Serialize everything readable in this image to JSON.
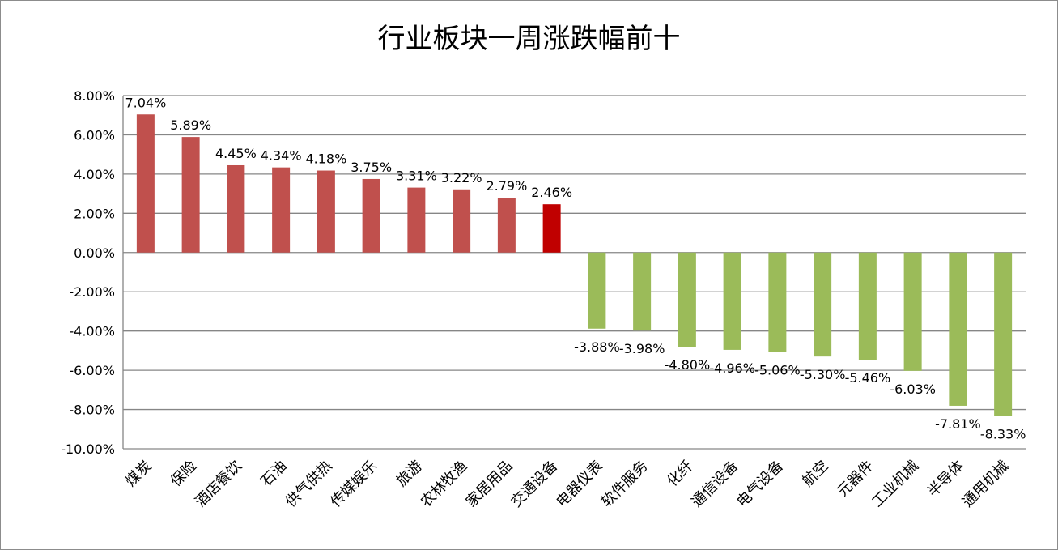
{
  "chart_data": {
    "type": "bar",
    "title": "行业板块一周涨跌幅前十",
    "xlabel": "",
    "ylabel": "",
    "ylim": [
      -10,
      8
    ],
    "y_ticks": [
      "8.00%",
      "6.00%",
      "4.00%",
      "2.00%",
      "0.00%",
      "-2.00%",
      "-4.00%",
      "-6.00%",
      "-8.00%",
      "-10.00%"
    ],
    "y_tick_values": [
      8,
      6,
      4,
      2,
      0,
      -2,
      -4,
      -6,
      -8,
      -10
    ],
    "grid": true,
    "legend": "none",
    "categories": [
      "煤炭",
      "保险",
      "酒店餐饮",
      "石油",
      "供气供热",
      "传媒娱乐",
      "旅游",
      "农林牧渔",
      "家居用品",
      "交通设备",
      "电器仪表",
      "软件服务",
      "化纤",
      "通信设备",
      "电气设备",
      "航空",
      "元器件",
      "工业机械",
      "半导体",
      "通用机械"
    ],
    "values": [
      7.04,
      5.89,
      4.45,
      4.34,
      4.18,
      3.75,
      3.31,
      3.22,
      2.79,
      2.46,
      -3.88,
      -3.98,
      -4.8,
      -4.96,
      -5.06,
      -5.3,
      -5.46,
      -6.03,
      -7.81,
      -8.33
    ],
    "data_labels": [
      "7.04%",
      "5.89%",
      "4.45%",
      "4.34%",
      "4.18%",
      "3.75%",
      "3.31%",
      "3.22%",
      "2.79%",
      "2.46%",
      "-3.88%",
      "-3.98%",
      "-4.80%",
      "-4.96%",
      "-5.06%",
      "-5.30%",
      "-5.46%",
      "-6.03%",
      "-7.81%",
      "-8.33%"
    ],
    "colors": {
      "positive": "#c0504d",
      "highlight": "#c00000",
      "negative": "#9bbb59",
      "grid": "#868686",
      "text": "#000000"
    },
    "highlight_index": 9
  }
}
